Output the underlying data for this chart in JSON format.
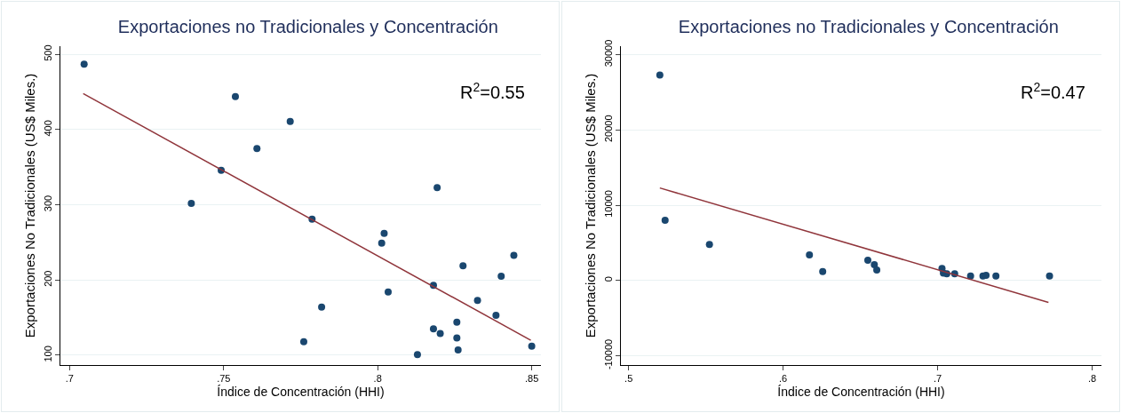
{
  "chart_data": [
    {
      "type": "scatter",
      "title": "Exportaciones no Tradicionales y Concentración",
      "xlabel": "Índice de Concentración (HHI)",
      "ylabel": "Exportaciones No Tradicionales (US$ Miles.)",
      "annotations": [
        "R$^{2}$=0.55"
      ],
      "grid": "y",
      "xlim": [
        0.697,
        0.853
      ],
      "xticks": [
        {
          "value": 0.7,
          "label": ".7"
        },
        {
          "value": 0.75,
          "label": ".75"
        },
        {
          "value": 0.8,
          "label": ".8"
        },
        {
          "value": 0.85,
          "label": ".85"
        }
      ],
      "ylim": [
        87,
        511
      ],
      "yticks": [
        100,
        200,
        300,
        400,
        500
      ],
      "series": [
        {
          "color": "#1a476f",
          "marker": "circle",
          "x": [
            0.7047,
            0.7538,
            0.7716,
            0.7608,
            0.7492,
            0.7395,
            0.7787,
            0.7818,
            0.776,
            0.8193,
            0.8021,
            0.8013,
            0.8034,
            0.8129,
            0.8181,
            0.8181,
            0.8203,
            0.8257,
            0.8257,
            0.8261,
            0.8277,
            0.8324,
            0.8384,
            0.8401,
            0.8442,
            0.85
          ],
          "values": [
            487,
            444,
            411,
            375,
            346,
            302,
            281,
            164,
            118,
            323,
            262,
            249,
            184,
            101,
            193,
            135,
            129,
            144,
            123,
            107,
            219,
            173,
            153,
            205,
            233,
            112
          ]
        },
        {
          "type": "line",
          "marker": "none",
          "color": "#90353b",
          "x": [
            0.7044,
            0.8497
          ],
          "values": [
            448,
            120
          ]
        }
      ]
    },
    {
      "type": "scatter",
      "title": "Exportaciones no Tradicionales y Concentración",
      "xlabel": "Índice de Concentración (HHI)",
      "ylabel": "Exportaciones No Tradicionales (US$ Miles.)",
      "annotations": [
        "R$^{2}$=0.47"
      ],
      "grid": "y",
      "xlim": [
        0.495,
        0.806
      ],
      "xticks": [
        {
          "value": 0.5,
          "label": ".5"
        },
        {
          "value": 0.6,
          "label": ".6"
        },
        {
          "value": 0.7,
          "label": ".7"
        },
        {
          "value": 0.8,
          "label": ".8"
        }
      ],
      "ylim": [
        -11230,
        31140
      ],
      "yticks": [
        -10000,
        0,
        10000,
        20000,
        30000
      ],
      "series": [
        {
          "color": "#1a476f",
          "marker": "circle",
          "x": [
            0.5202,
            0.5236,
            0.5523,
            0.617,
            0.6256,
            0.6548,
            0.659,
            0.6606,
            0.7028,
            0.7037,
            0.7059,
            0.711,
            0.7213,
            0.7293,
            0.7313,
            0.7377,
            0.7724
          ],
          "values": [
            27300,
            8000,
            4800,
            3400,
            1200,
            2700,
            2100,
            1400,
            1600,
            1000,
            900,
            900,
            600,
            600,
            700,
            600,
            600
          ]
        },
        {
          "type": "line",
          "marker": "none",
          "color": "#90353b",
          "x": [
            0.5202,
            0.7717
          ],
          "values": [
            12300,
            -2900
          ]
        }
      ]
    }
  ]
}
